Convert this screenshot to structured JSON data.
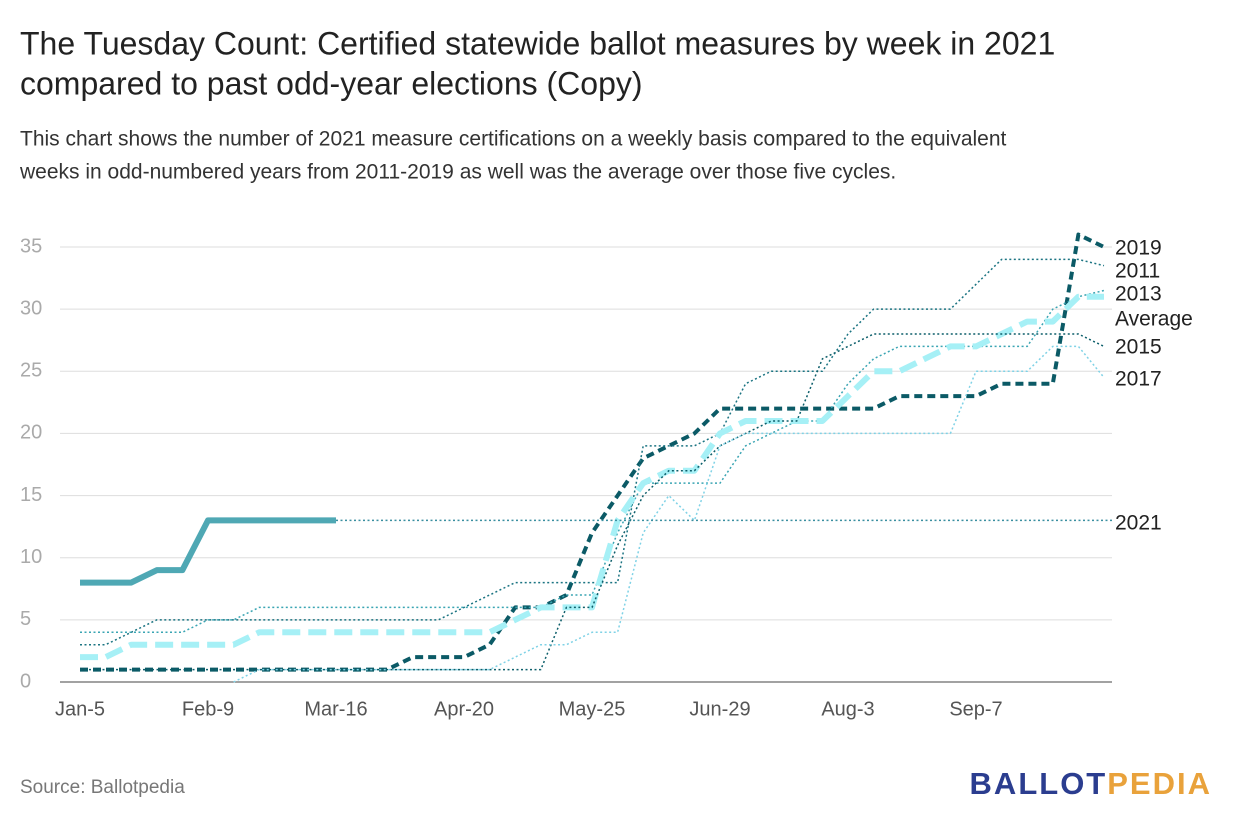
{
  "chart_data": {
    "type": "line",
    "title": "The Tuesday Count: Certified statewide ballot measures by week in 2021 compared to past odd-year elections (Copy)",
    "title_lines": [
      "The Tuesday Count: Certified statewide ballot measures by week in 2021",
      "compared to past odd-year elections (Copy)"
    ],
    "subtitle_lines": [
      "This chart shows the number of 2021 measure certifications on a weekly basis compared to the equivalent",
      "weeks in odd-numbered years from 2011-2019 as well was the average over those five cycles."
    ],
    "source": "Source: Ballotpedia",
    "logo": [
      "BALLOT",
      "PEDIA"
    ],
    "categories": [
      "Jan-5",
      null,
      null,
      null,
      null,
      "Feb-9",
      null,
      null,
      null,
      null,
      "Mar-16",
      null,
      null,
      null,
      null,
      "Apr-20",
      null,
      null,
      null,
      null,
      "May-25",
      null,
      null,
      null,
      null,
      "Jun-29",
      null,
      null,
      null,
      null,
      "Aug-3",
      null,
      null,
      null,
      null,
      "Sep-7",
      null,
      null,
      null,
      null,
      null
    ],
    "ylim": [
      0,
      35
    ],
    "yticks": [
      0,
      5,
      10,
      15,
      20,
      25,
      30,
      35
    ],
    "grid": true,
    "series": [
      {
        "name": "2019",
        "color": "#0b5a66",
        "style": "dashed",
        "values": [
          1,
          1,
          1,
          1,
          1,
          1,
          1,
          1,
          1,
          1,
          1,
          1,
          1,
          2,
          2,
          2,
          3,
          6,
          6,
          7,
          12,
          15,
          18,
          19,
          20,
          22,
          22,
          22,
          22,
          22,
          22,
          22,
          23,
          23,
          23,
          23,
          24,
          24,
          24,
          36,
          35
        ]
      },
      {
        "name": "2011",
        "color": "#1b7482",
        "style": "dotted",
        "values": [
          3,
          3,
          4,
          5,
          5,
          5,
          5,
          5,
          5,
          5,
          5,
          5,
          5,
          5,
          5,
          6,
          7,
          8,
          8,
          8,
          8,
          8,
          19,
          19,
          19,
          20,
          24,
          25,
          25,
          25,
          28,
          30,
          30,
          30,
          30,
          32,
          34,
          34,
          34,
          34,
          33.5
        ]
      },
      {
        "name": "2013",
        "color": "#3aa5b3",
        "style": "dotted",
        "values": [
          4,
          4,
          4,
          4,
          4,
          5,
          5,
          6,
          6,
          6,
          6,
          6,
          6,
          6,
          6,
          6,
          6,
          6,
          6,
          7,
          7,
          12,
          16,
          16,
          16,
          16,
          19,
          20,
          21,
          21,
          24,
          26,
          27,
          27,
          27,
          27,
          27,
          27,
          30,
          31,
          31.5
        ]
      },
      {
        "name": "Average",
        "color": "#a6f0f6",
        "style": "dashed-thick",
        "values": [
          2,
          2,
          3,
          3,
          3,
          3,
          3,
          4,
          4,
          4,
          4,
          4,
          4,
          4,
          4,
          4,
          4,
          5,
          6,
          6,
          6,
          13,
          16,
          17,
          17,
          20,
          21,
          21,
          21,
          21,
          23,
          25,
          25,
          26,
          27,
          27,
          28,
          29,
          29,
          31,
          31
        ]
      },
      {
        "name": "2015",
        "color": "#0d5f6b",
        "style": "dotted",
        "values": [
          1,
          1,
          1,
          1,
          1,
          1,
          1,
          1,
          1,
          1,
          1,
          1,
          1,
          1,
          1,
          1,
          1,
          1,
          1,
          6,
          6,
          11,
          15,
          17,
          17,
          19,
          20,
          21,
          21,
          26,
          27,
          28,
          28,
          28,
          28,
          28,
          28,
          28,
          28,
          28,
          27
        ]
      },
      {
        "name": "2017",
        "color": "#7fd2e6",
        "style": "dotted",
        "values": [
          null,
          null,
          null,
          null,
          null,
          null,
          0,
          1,
          1,
          1,
          1,
          1,
          1,
          1,
          1,
          1,
          1,
          2,
          3,
          3,
          4,
          4,
          12,
          15,
          13,
          19,
          20,
          20,
          20,
          20,
          20,
          20,
          20,
          20,
          20,
          25,
          25,
          25,
          27,
          27,
          24.5
        ]
      },
      {
        "name": "2021",
        "color": "#4fa8b4",
        "style": "solid",
        "values": [
          8,
          8,
          8,
          9,
          9,
          13,
          13,
          13,
          13,
          13,
          13,
          null,
          null,
          null,
          null,
          null,
          null,
          null,
          null,
          null,
          null,
          null,
          null,
          null,
          null,
          null,
          null,
          null,
          null,
          null,
          null,
          null,
          null,
          null,
          null,
          null,
          null,
          null,
          null,
          null,
          null
        ]
      }
    ]
  }
}
